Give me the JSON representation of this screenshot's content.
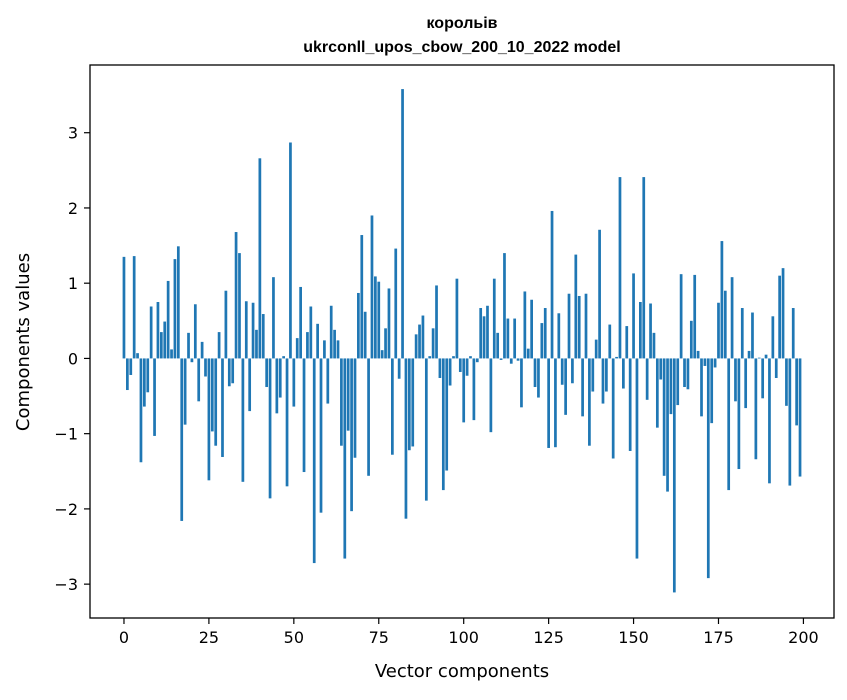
{
  "chart_data": {
    "type": "bar",
    "title": "корольів\nukrconll_upos_cbow_200_10_2022 model",
    "title_lines": [
      "корольів",
      "ukrconll_upos_cbow_200_10_2022 model"
    ],
    "xlabel": "Vector components",
    "ylabel": "Components values",
    "xlim": [
      -10,
      209
    ],
    "ylim": [
      -3.45,
      3.9
    ],
    "xticks": [
      0,
      25,
      50,
      75,
      100,
      125,
      150,
      175,
      200
    ],
    "xtick_labels": [
      "0",
      "25",
      "50",
      "75",
      "100",
      "125",
      "150",
      "175",
      "200"
    ],
    "yticks": [
      -3,
      -2,
      -1,
      0,
      1,
      2,
      3
    ],
    "ytick_labels": [
      "−3",
      "−2",
      "−1",
      "0",
      "1",
      "2",
      "3"
    ],
    "bar_color": "#1f77b4",
    "grid": false,
    "legend": "none",
    "x": [
      0,
      1,
      2,
      3,
      4,
      5,
      6,
      7,
      8,
      9,
      10,
      11,
      12,
      13,
      14,
      15,
      16,
      17,
      18,
      19,
      20,
      21,
      22,
      23,
      24,
      25,
      26,
      27,
      28,
      29,
      30,
      31,
      32,
      33,
      34,
      35,
      36,
      37,
      38,
      39,
      40,
      41,
      42,
      43,
      44,
      45,
      46,
      47,
      48,
      49,
      50,
      51,
      52,
      53,
      54,
      55,
      56,
      57,
      58,
      59,
      60,
      61,
      62,
      63,
      64,
      65,
      66,
      67,
      68,
      69,
      70,
      71,
      72,
      73,
      74,
      75,
      76,
      77,
      78,
      79,
      80,
      81,
      82,
      83,
      84,
      85,
      86,
      87,
      88,
      89,
      90,
      91,
      92,
      93,
      94,
      95,
      96,
      97,
      98,
      99,
      100,
      101,
      102,
      103,
      104,
      105,
      106,
      107,
      108,
      109,
      110,
      111,
      112,
      113,
      114,
      115,
      116,
      117,
      118,
      119,
      120,
      121,
      122,
      123,
      124,
      125,
      126,
      127,
      128,
      129,
      130,
      131,
      132,
      133,
      134,
      135,
      136,
      137,
      138,
      139,
      140,
      141,
      142,
      143,
      144,
      145,
      146,
      147,
      148,
      149,
      150,
      151,
      152,
      153,
      154,
      155,
      156,
      157,
      158,
      159,
      160,
      161,
      162,
      163,
      164,
      165,
      166,
      167,
      168,
      169,
      170,
      171,
      172,
      173,
      174,
      175,
      176,
      177,
      178,
      179,
      180,
      181,
      182,
      183,
      184,
      185,
      186,
      187,
      188,
      189,
      190,
      191,
      192,
      193,
      194,
      195,
      196,
      197,
      198,
      199
    ],
    "values": [
      1.35,
      -0.42,
      -0.22,
      1.36,
      0.07,
      -1.38,
      -0.64,
      -0.45,
      0.69,
      -1.03,
      0.75,
      0.35,
      0.49,
      1.03,
      0.12,
      1.32,
      1.49,
      -2.16,
      -0.88,
      0.34,
      -0.05,
      0.72,
      -0.57,
      0.22,
      -0.24,
      -1.62,
      -0.97,
      -1.16,
      0.35,
      -1.31,
      0.9,
      -0.37,
      -0.33,
      1.68,
      1.4,
      -1.64,
      0.76,
      -0.7,
      0.74,
      0.38,
      2.66,
      0.59,
      -0.38,
      -1.86,
      1.08,
      -0.73,
      -0.52,
      0.03,
      -1.7,
      2.87,
      -0.64,
      0.27,
      0.95,
      -1.51,
      0.35,
      0.69,
      -2.72,
      0.46,
      -2.05,
      0.24,
      -0.6,
      0.7,
      0.38,
      0.24,
      -1.16,
      -2.66,
      -0.96,
      -2.03,
      -1.32,
      0.87,
      1.64,
      0.62,
      -1.56,
      1.9,
      1.09,
      1.02,
      0.11,
      0.4,
      0.93,
      -1.28,
      1.46,
      -0.27,
      3.58,
      -2.13,
      -1.22,
      -1.17,
      0.32,
      0.45,
      0.57,
      -1.89,
      0.03,
      0.4,
      0.97,
      -0.26,
      -1.75,
      -1.49,
      -0.36,
      0.03,
      1.06,
      -0.18,
      -0.85,
      -0.23,
      0.03,
      -0.82,
      -0.05,
      0.67,
      0.56,
      0.7,
      -0.98,
      1.06,
      0.34,
      -0.02,
      1.4,
      0.53,
      -0.07,
      0.53,
      -0.03,
      -0.65,
      0.89,
      0.13,
      0.78,
      -0.38,
      -0.52,
      0.47,
      0.67,
      -1.19,
      1.96,
      -1.18,
      0.6,
      -0.35,
      -0.75,
      0.86,
      -0.33,
      1.38,
      0.83,
      -0.77,
      0.86,
      -1.16,
      -0.44,
      0.25,
      1.71,
      -0.6,
      -0.44,
      0.45,
      -1.33,
      0.02,
      2.41,
      -0.4,
      0.43,
      -1.23,
      1.13,
      -2.66,
      0.75,
      2.41,
      -0.55,
      0.73,
      0.34,
      -0.92,
      -0.28,
      -1.56,
      -1.77,
      -0.74,
      -3.11,
      -0.62,
      1.12,
      -0.38,
      -0.41,
      0.5,
      1.11,
      0.1,
      -0.77,
      -0.1,
      -2.92,
      -0.86,
      -0.12,
      0.74,
      1.56,
      0.9,
      -1.75,
      1.08,
      -0.57,
      -1.47,
      0.67,
      -0.66,
      0.1,
      0.61,
      -1.34,
      0.01,
      -0.53,
      0.05,
      -1.66,
      0.56,
      -0.26,
      1.1,
      1.2,
      -0.63,
      -1.69,
      0.67,
      -0.89,
      -1.57
    ]
  }
}
